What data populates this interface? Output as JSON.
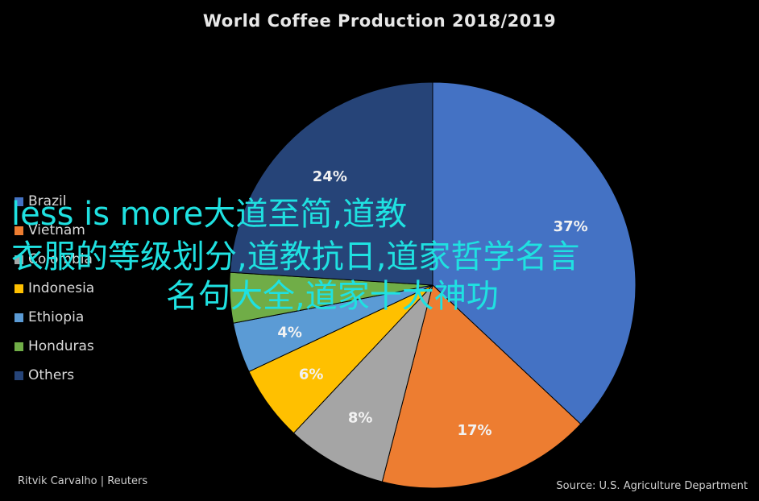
{
  "chart_data": {
    "type": "pie",
    "title": "World Coffee Production 2018/2019",
    "categories": [
      "Brazil",
      "Vietnam",
      "Colombia",
      "Indonesia",
      "Ethiopia",
      "Honduras",
      "Others"
    ],
    "values": [
      37,
      17,
      8,
      6,
      4,
      4,
      24
    ],
    "data_labels": [
      "37%",
      "17%",
      "8%",
      "6%",
      "4%",
      "",
      "24%"
    ],
    "colors": [
      "#4472C4",
      "#ED7D31",
      "#A5A5A5",
      "#FFC000",
      "#5B9BD5",
      "#70AD47",
      "#264478"
    ],
    "legend": "left",
    "credit": "Ritvik Carvalho | Reuters",
    "source": "Source: U.S. Agriculture Department"
  },
  "overlay": {
    "lines": [
      "less is more大道至简,道教",
      "衣服的等级划分,道教抗日,道家哲学名言",
      "名句大全,道家十大神功"
    ],
    "color": "#1fe1e1"
  }
}
